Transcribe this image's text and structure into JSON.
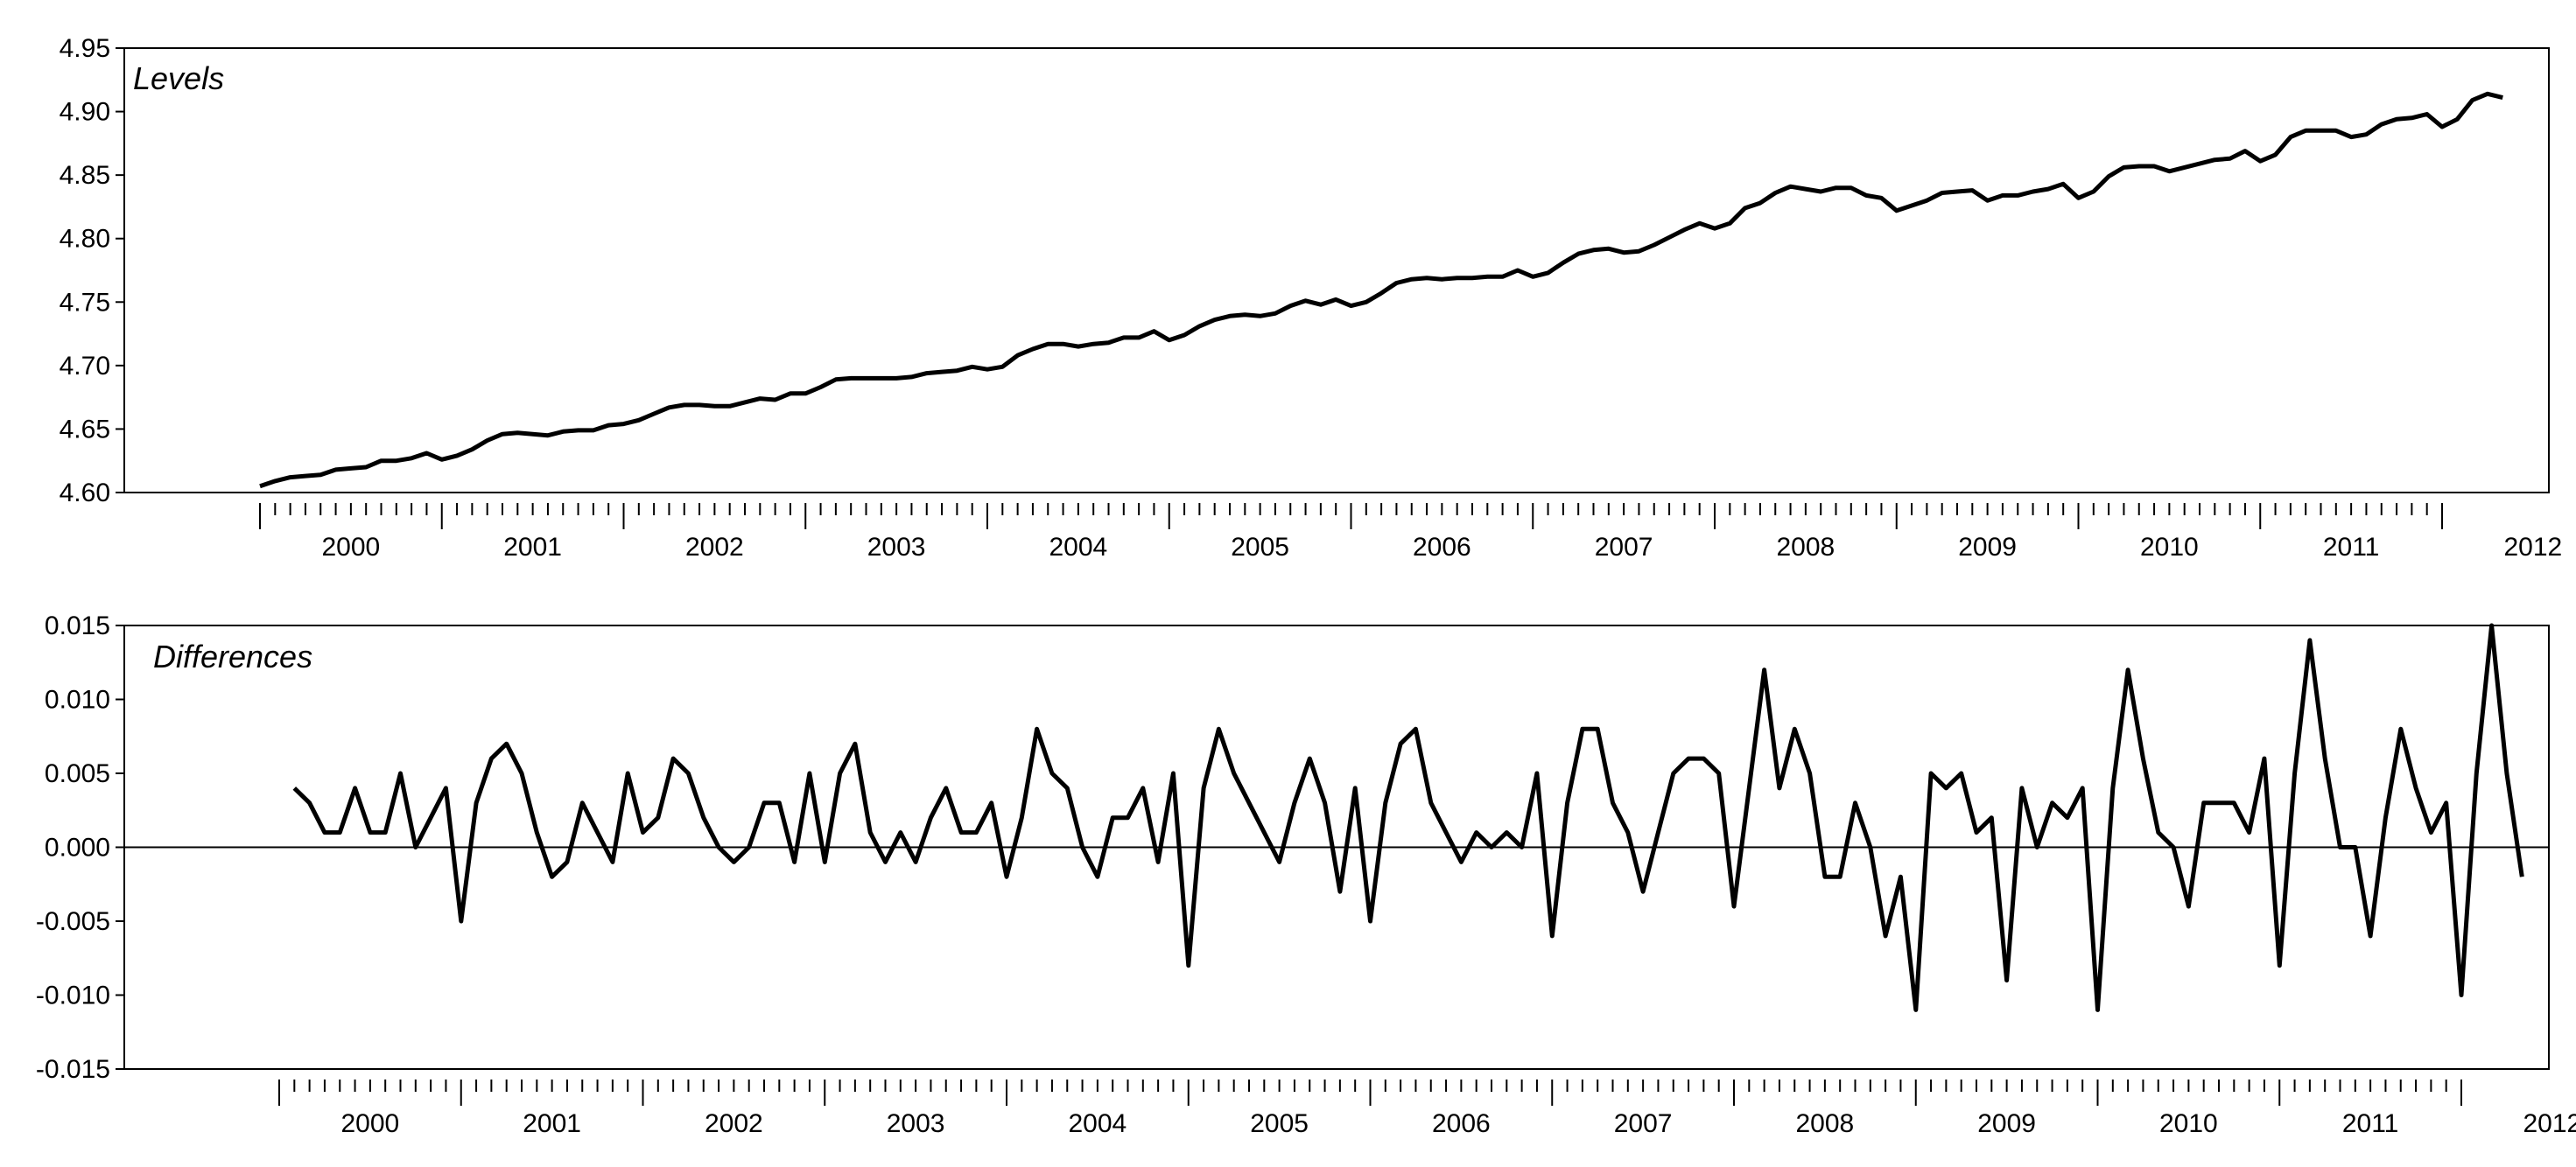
{
  "colors": {
    "line": "#000000",
    "frame": "#000000",
    "background": "#ffffff"
  },
  "chart_data": [
    {
      "type": "line",
      "title": "Levels",
      "xlabel": "",
      "ylabel": "",
      "x_start": "2000-01",
      "frequency": "monthly",
      "x_tick_labels": [
        "2000",
        "2001",
        "2002",
        "2003",
        "2004",
        "2005",
        "2006",
        "2007",
        "2008",
        "2009",
        "2010",
        "2011",
        "2012"
      ],
      "ylim": [
        4.6,
        4.95
      ],
      "y_ticks": [
        4.6,
        4.65,
        4.7,
        4.75,
        4.8,
        4.85,
        4.9,
        4.95
      ],
      "y_tick_labels": [
        "4.60",
        "4.65",
        "4.70",
        "4.75",
        "4.80",
        "4.85",
        "4.90",
        "4.95"
      ],
      "zero_line": false,
      "series": [
        {
          "values": [
            4.605,
            4.609,
            4.612,
            4.613,
            4.614,
            4.618,
            4.619,
            4.62,
            4.625,
            4.625,
            4.627,
            4.631,
            4.626,
            4.629,
            4.634,
            4.641,
            4.646,
            4.647,
            4.646,
            4.645,
            4.648,
            4.649,
            4.649,
            4.653,
            4.654,
            4.657,
            4.662,
            4.667,
            4.669,
            4.669,
            4.668,
            4.668,
            4.671,
            4.674,
            4.673,
            4.678,
            4.678,
            4.683,
            4.689,
            4.69,
            4.69,
            4.69,
            4.69,
            4.691,
            4.694,
            4.695,
            4.696,
            4.699,
            4.697,
            4.699,
            4.708,
            4.713,
            4.717,
            4.717,
            4.715,
            4.717,
            4.718,
            4.722,
            4.722,
            4.727,
            4.72,
            4.724,
            4.731,
            4.736,
            4.739,
            4.74,
            4.739,
            4.741,
            4.747,
            4.751,
            4.748,
            4.752,
            4.747,
            4.75,
            4.757,
            4.765,
            4.768,
            4.769,
            4.768,
            4.769,
            4.769,
            4.77,
            4.77,
            4.775,
            4.77,
            4.773,
            4.781,
            4.788,
            4.791,
            4.792,
            4.789,
            4.79,
            4.795,
            4.801,
            4.807,
            4.812,
            4.808,
            4.812,
            4.824,
            4.828,
            4.836,
            4.841,
            4.839,
            4.837,
            4.84,
            4.84,
            4.834,
            4.832,
            4.822,
            4.826,
            4.83,
            4.836,
            4.837,
            4.838,
            4.83,
            4.834,
            4.834,
            4.837,
            4.839,
            4.843,
            4.832,
            4.837,
            4.849,
            4.856,
            4.857,
            4.857,
            4.853,
            4.856,
            4.859,
            4.862,
            4.863,
            4.869,
            4.861,
            4.866,
            4.88,
            4.885,
            4.885,
            4.885,
            4.88,
            4.882,
            4.89,
            4.894,
            4.895,
            4.898,
            4.888,
            4.894,
            4.909,
            4.914,
            4.911
          ]
        }
      ]
    },
    {
      "type": "line",
      "title": "Differences",
      "xlabel": "",
      "ylabel": "",
      "x_start": "2000-02",
      "frequency": "monthly",
      "x_tick_labels": [
        "2000",
        "2001",
        "2002",
        "2003",
        "2004",
        "2005",
        "2006",
        "2007",
        "2008",
        "2009",
        "2010",
        "2011",
        "2012"
      ],
      "ylim": [
        -0.015,
        0.015
      ],
      "y_ticks": [
        -0.015,
        -0.01,
        -0.005,
        0.0,
        0.005,
        0.01,
        0.015
      ],
      "y_tick_labels": [
        "-0.015",
        "-0.010",
        "-0.005",
        "0.000",
        "0.005",
        "0.010",
        "0.015"
      ],
      "zero_line": true,
      "series": [
        {
          "values": [
            0.004,
            0.003,
            0.001,
            0.001,
            0.004,
            0.001,
            0.001,
            0.005,
            0.0,
            0.002,
            0.004,
            -0.005,
            0.003,
            0.006,
            0.007,
            0.005,
            0.001,
            -0.002,
            -0.001,
            0.003,
            0.001,
            -0.001,
            0.005,
            0.001,
            0.002,
            0.006,
            0.005,
            0.002,
            0.0,
            -0.001,
            0.0,
            0.003,
            0.003,
            -0.001,
            0.005,
            -0.001,
            0.005,
            0.007,
            0.001,
            -0.001,
            0.001,
            -0.001,
            0.002,
            0.004,
            0.001,
            0.001,
            0.003,
            -0.002,
            0.002,
            0.008,
            0.005,
            0.004,
            0.0,
            -0.002,
            0.002,
            0.002,
            0.004,
            -0.001,
            0.005,
            -0.008,
            0.004,
            0.008,
            0.005,
            0.003,
            0.001,
            -0.001,
            0.003,
            0.006,
            0.003,
            -0.003,
            0.004,
            -0.005,
            0.003,
            0.007,
            0.008,
            0.003,
            0.001,
            -0.001,
            0.001,
            0.0,
            0.001,
            0.0,
            0.005,
            -0.006,
            0.003,
            0.008,
            0.008,
            0.003,
            0.001,
            -0.003,
            0.001,
            0.005,
            0.006,
            0.006,
            0.005,
            -0.004,
            0.004,
            0.012,
            0.004,
            0.008,
            0.005,
            -0.002,
            -0.002,
            0.003,
            0.0,
            -0.006,
            -0.002,
            -0.011,
            0.005,
            0.004,
            0.005,
            0.001,
            0.002,
            -0.009,
            0.004,
            0.0,
            0.003,
            0.002,
            0.004,
            -0.011,
            0.004,
            0.012,
            0.006,
            0.001,
            0.0,
            -0.004,
            0.003,
            0.003,
            0.003,
            0.001,
            0.006,
            -0.008,
            0.005,
            0.014,
            0.006,
            0.0,
            0.0,
            -0.006,
            0.002,
            0.008,
            0.004,
            0.001,
            0.003,
            -0.01,
            0.005,
            0.015,
            0.005,
            -0.002
          ]
        }
      ]
    }
  ]
}
